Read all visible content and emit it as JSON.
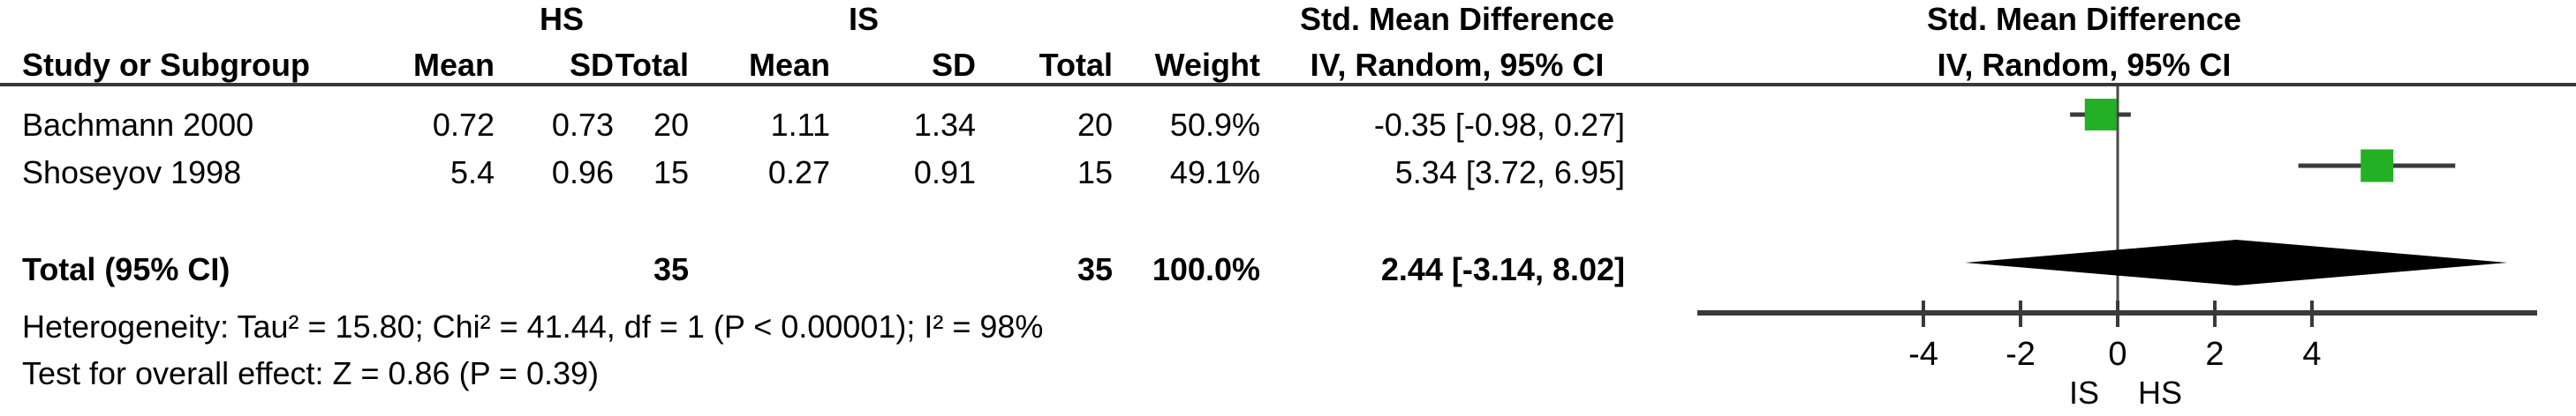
{
  "header": {
    "study_col": "Study or Subgroup",
    "group1": "HS",
    "group2": "IS",
    "mean": "Mean",
    "sd": "SD",
    "total": "Total",
    "weight": "Weight",
    "smd_title": "Std. Mean Difference",
    "smd_sub": "IV, Random, 95% CI"
  },
  "rows": [
    {
      "study": "Bachmann 2000",
      "hs_mean": "0.72",
      "hs_sd": "0.73",
      "hs_total": "20",
      "is_mean": "1.11",
      "is_sd": "1.34",
      "is_total": "20",
      "weight": "50.9%",
      "smd_ci": "-0.35 [-0.98, 0.27]"
    },
    {
      "study": "Shoseyov 1998",
      "hs_mean": "5.4",
      "hs_sd": "0.96",
      "hs_total": "15",
      "is_mean": "0.27",
      "is_sd": "0.91",
      "is_total": "15",
      "weight": "49.1%",
      "smd_ci": "5.34 [3.72, 6.95]"
    }
  ],
  "total_row": {
    "label": "Total (95% CI)",
    "hs_total": "35",
    "is_total": "35",
    "weight": "100.0%",
    "smd_ci": "2.44 [-3.14, 8.02]"
  },
  "footer": {
    "heterogeneity": "Heterogeneity: Tau² = 15.80; Chi² = 41.44, df = 1 (P < 0.00001); I² = 98%",
    "overall_effect": "Test for overall effect: Z = 0.86 (P = 0.39)"
  },
  "chart_data": {
    "type": "forest",
    "title": "Std. Mean Difference",
    "subtitle": "IV, Random, 95% CI",
    "x_ticks": [
      -4,
      -2,
      0,
      2,
      4
    ],
    "xlim": [
      -8.65,
      8.65
    ],
    "studies": [
      {
        "name": "Bachmann 2000",
        "estimate": -0.35,
        "ci_low": -0.98,
        "ci_high": 0.27,
        "weight_pct": 50.9
      },
      {
        "name": "Shoseyov 1998",
        "estimate": 5.34,
        "ci_low": 3.72,
        "ci_high": 6.95,
        "weight_pct": 49.1
      }
    ],
    "total": {
      "estimate": 2.44,
      "ci_low": -3.14,
      "ci_high": 8.02,
      "weight_pct": 100.0
    },
    "left_label": "IS",
    "right_label": "HS",
    "square_color": "#24b024",
    "line_color": "#3a3a3a"
  }
}
